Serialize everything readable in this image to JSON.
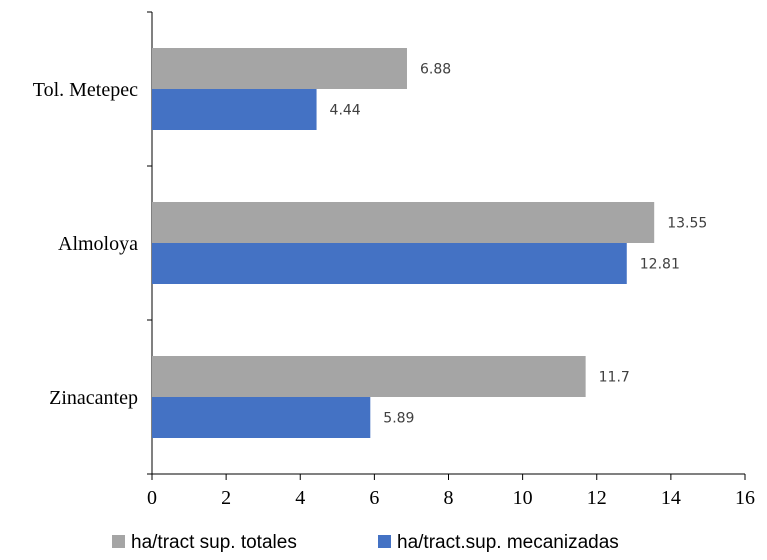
{
  "chart_data": {
    "type": "bar",
    "orientation": "horizontal",
    "categories": [
      "Tol. Metepec",
      "Almoloya",
      "Zinacantep"
    ],
    "series": [
      {
        "name": "ha/tract sup. totales",
        "values": [
          6.88,
          13.55,
          11.7
        ],
        "labels": [
          "6.88",
          "13.55",
          "11.7"
        ],
        "color": "#a5a5a5"
      },
      {
        "name": "ha/tract.sup. mecanizadas",
        "values": [
          4.44,
          12.81,
          5.89
        ],
        "labels": [
          "4.44",
          "12.81",
          "5.89"
        ],
        "color": "#4472c4"
      }
    ],
    "xlim": [
      0,
      16
    ],
    "xticks": [
      0,
      2,
      4,
      6,
      8,
      10,
      12,
      14,
      16
    ],
    "xtick_labels": [
      "0",
      "2",
      "4",
      "6",
      "8",
      "10",
      "12",
      "14",
      "16"
    ],
    "title": "",
    "xlabel": "",
    "ylabel": "",
    "grid": false,
    "legend_position": "bottom"
  }
}
